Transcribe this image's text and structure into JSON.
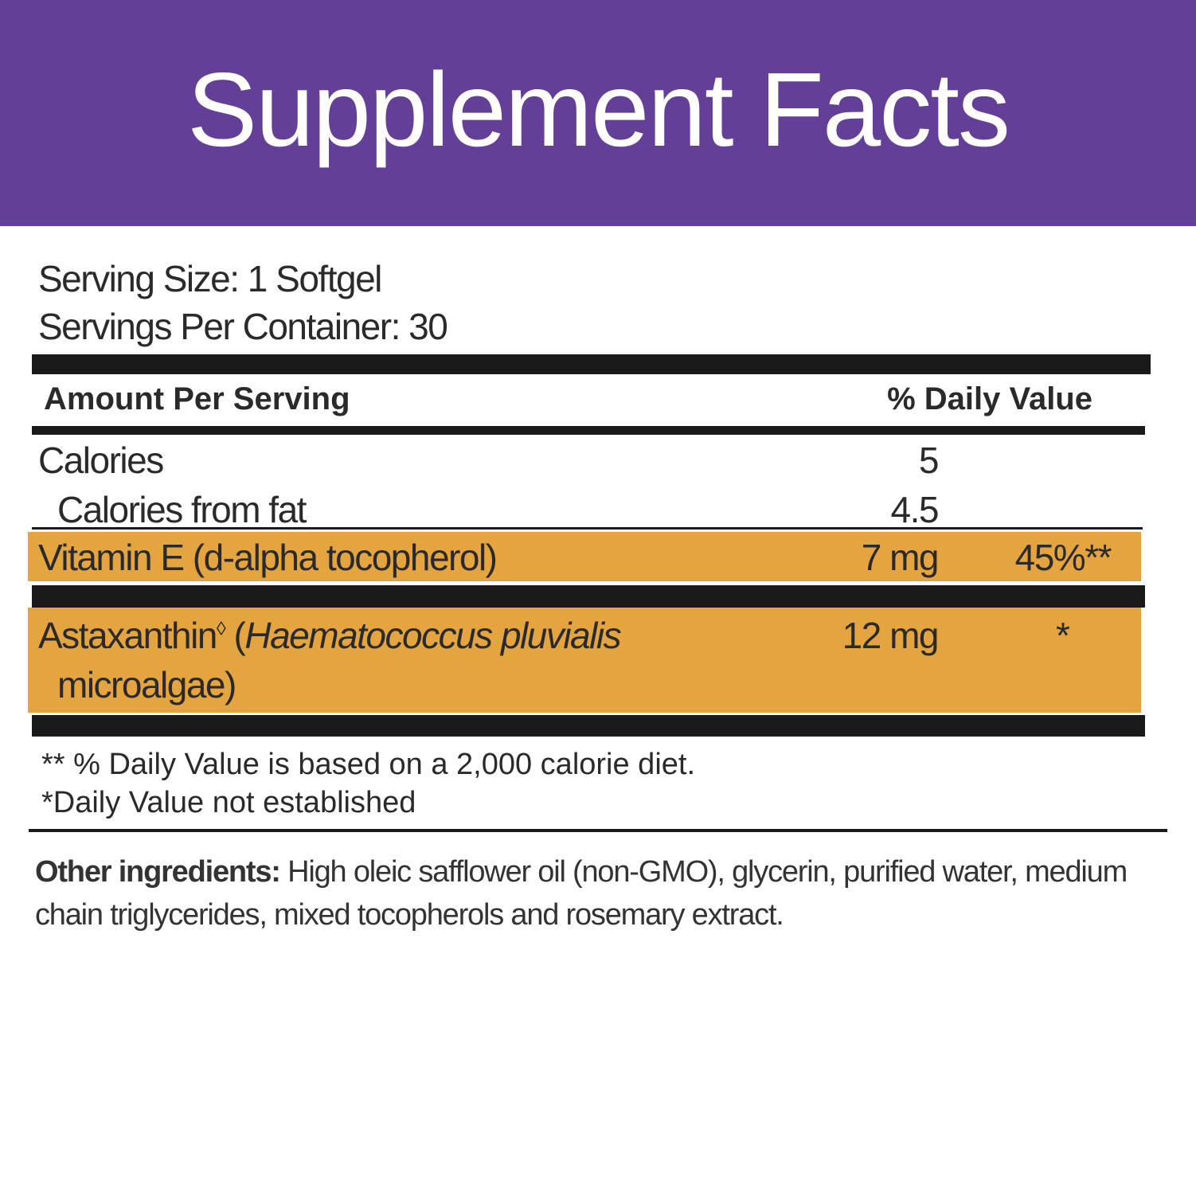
{
  "header": {
    "title": "Supplement Facts"
  },
  "serving": {
    "size": "Serving Size: 1 Softgel",
    "per_container": "Servings Per Container: 30"
  },
  "table": {
    "header": {
      "amount": "Amount Per Serving",
      "daily_value": "% Daily Value"
    },
    "rows": [
      {
        "name": "Calories",
        "amount": "5"
      },
      {
        "name": "Calories from fat",
        "amount": "4.5"
      },
      {
        "name": "Vitamin E (d-alpha tocopherol)",
        "amount": "7 mg",
        "daily_value": "45%**"
      },
      {
        "name_parts": [
          "Astaxanthin",
          "◊",
          " (",
          "Haematococcus pluvialis",
          "microalgae)"
        ],
        "amount": "12 mg",
        "daily_value": "*"
      }
    ]
  },
  "footnotes": [
    "** % Daily Value is based on a 2,000 calorie diet.",
    "*Daily Value not established"
  ],
  "other_ingredients": {
    "label": "Other ingredients:",
    "text": "High oleic safflower oil (non-GMO), glycerin, purified water, medium chain triglycerides, mixed tocopherols and rosemary extract."
  }
}
